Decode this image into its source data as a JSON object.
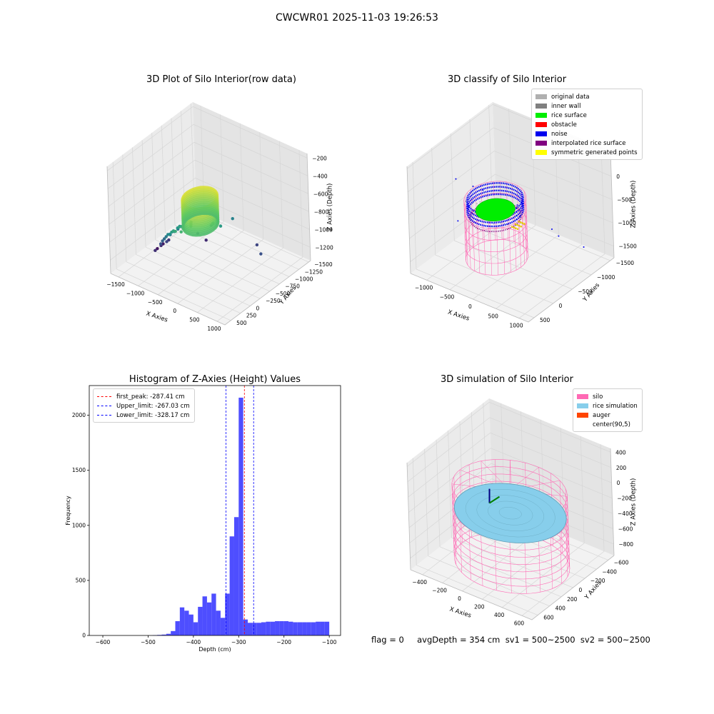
{
  "suptitle": "CWCWR01 2025-11-03 19:26:53",
  "footer": "flag = 0     avgDepth = 354 cm  sv1 = 500~2500  sv2 = 500~2500",
  "colors": {
    "grid": "#d6d6d6",
    "pane": "#f2f2f2",
    "hist_bar": "#4444ff",
    "peak_line": "#ff0000",
    "limit_line": "#0000ff",
    "silo": "#ff69b4",
    "rice": "#87ceeb",
    "auger": "#ff4500"
  },
  "chart_data": [
    {
      "id": "raw",
      "type": "scatter",
      "title": "3D Plot of Silo Interior(row data)",
      "xlabel": "X Axies",
      "ylabel": "Y Axies",
      "zlabel": "Z Axies (Depth)",
      "xlim": [
        -1700,
        1200
      ],
      "ylim": [
        -1550,
        650
      ],
      "zlim": [
        -1350,
        -150
      ],
      "xticks": [
        -1500,
        -1000,
        -500,
        0,
        500,
        1000
      ],
      "yticks": [
        500,
        250,
        0,
        -250,
        -500,
        -750,
        -1000,
        -1250,
        -1500
      ],
      "zticks": [
        -200,
        -400,
        -600,
        -800,
        -1000,
        -1200
      ],
      "colormap": "viridis",
      "ring": {
        "cx": 300,
        "cy": 300,
        "r": 320,
        "z_top": -220,
        "z_bottom": -520
      },
      "scatter_points": [
        {
          "x": -1350,
          "y": -200,
          "z": -1280
        },
        {
          "x": -1300,
          "y": -300,
          "z": -1250
        },
        {
          "x": -1200,
          "y": -150,
          "z": -1200
        },
        {
          "x": -1100,
          "y": -250,
          "z": -1150
        },
        {
          "x": -1150,
          "y": 50,
          "z": -1180
        },
        {
          "x": -1000,
          "y": -100,
          "z": -1100
        },
        {
          "x": -950,
          "y": 100,
          "z": -1050
        },
        {
          "x": -900,
          "y": -200,
          "z": -1000
        },
        {
          "x": -850,
          "y": 150,
          "z": -980
        },
        {
          "x": -800,
          "y": 0,
          "z": -950
        },
        {
          "x": -750,
          "y": 200,
          "z": -920
        },
        {
          "x": -700,
          "y": -100,
          "z": -900
        },
        {
          "x": -650,
          "y": 250,
          "z": -860
        },
        {
          "x": -600,
          "y": 100,
          "z": -840
        },
        {
          "x": -550,
          "y": 300,
          "z": -800
        },
        {
          "x": -500,
          "y": 50,
          "z": -780
        },
        {
          "x": -450,
          "y": 350,
          "z": -760
        },
        {
          "x": -400,
          "y": 200,
          "z": -730
        },
        {
          "x": -350,
          "y": 400,
          "z": -700
        },
        {
          "x": -300,
          "y": 250,
          "z": -680
        },
        {
          "x": -250,
          "y": 450,
          "z": -650
        },
        {
          "x": -200,
          "y": 300,
          "z": -640
        },
        {
          "x": -150,
          "y": 500,
          "z": -620
        },
        {
          "x": -100,
          "y": 150,
          "z": -620
        },
        {
          "x": -50,
          "y": 400,
          "z": -600
        },
        {
          "x": 0,
          "y": 250,
          "z": -590
        },
        {
          "x": 50,
          "y": 550,
          "z": -570
        },
        {
          "x": 100,
          "y": 350,
          "z": -560
        },
        {
          "x": -450,
          "y": -350,
          "z": -980
        },
        {
          "x": -250,
          "y": -500,
          "z": -900
        },
        {
          "x": 100,
          "y": -700,
          "z": -820
        },
        {
          "x": 500,
          "y": -900,
          "z": -1100
        },
        {
          "x": 850,
          "y": -650,
          "z": -1050
        },
        {
          "x": -600,
          "y": -700,
          "z": -1200
        },
        {
          "x": 0,
          "y": -300,
          "z": -760
        },
        {
          "x": 300,
          "y": -200,
          "z": -700
        }
      ]
    },
    {
      "id": "classify",
      "type": "scatter",
      "title": "3D classify of Silo Interior",
      "xlabel": "X Axies",
      "ylabel": "Y Axies",
      "zlabel": "Z Axies (Depth)",
      "xlim": [
        -1350,
        1200
      ],
      "ylim": [
        -1600,
        650
      ],
      "zlim": [
        -1750,
        550
      ],
      "xticks": [
        -1000,
        -500,
        0,
        500,
        1000
      ],
      "yticks": [
        500,
        0,
        -500,
        -1000,
        -1500
      ],
      "zticks": [
        500,
        0,
        -500,
        -1000,
        -1500
      ],
      "legend": [
        {
          "label": "original data",
          "color": "#b0b0b0"
        },
        {
          "label": "inner wall",
          "color": "#808080"
        },
        {
          "label": "rice surface",
          "color": "#00ee00"
        },
        {
          "label": "obstacle",
          "color": "#ff0000"
        },
        {
          "label": "noise",
          "color": "#0000ee"
        },
        {
          "label": "interpolated rice surface",
          "color": "#800080"
        },
        {
          "label": "symmetric generated points",
          "color": "#ffff00"
        }
      ]
    },
    {
      "id": "hist",
      "type": "bar",
      "title": "Histogram of Z-Axies (Height) Values",
      "xlabel": "Depth (cm)",
      "ylabel": "Frequency",
      "xlim": [
        -630,
        -75
      ],
      "ylim": [
        0,
        2270
      ],
      "xticks": [
        -600,
        -500,
        -400,
        -300,
        -200,
        -100
      ],
      "yticks": [
        0,
        500,
        1000,
        1500,
        2000
      ],
      "bin_start": -490,
      "bin_width": 10,
      "values": [
        3,
        5,
        8,
        15,
        40,
        130,
        255,
        225,
        190,
        120,
        260,
        355,
        300,
        380,
        225,
        160,
        380,
        900,
        1075,
        2160,
        145,
        115,
        115,
        115,
        120,
        125,
        125,
        130,
        130,
        130,
        125,
        120,
        120,
        120,
        120,
        120,
        125,
        125,
        125
      ],
      "vlines": [
        {
          "label": "first_peak: -287.41 cm",
          "x": -287.41,
          "color": "#ff0000"
        },
        {
          "label": "Upper_limit: -267.03 cm",
          "x": -267.03,
          "color": "#0000ff"
        },
        {
          "label": "Lower_limit: -328.17 cm",
          "x": -328.17,
          "color": "#0000ff"
        }
      ]
    },
    {
      "id": "sim",
      "type": "area",
      "title": "3D simulation of Silo Interior",
      "xlabel": "X Axies",
      "ylabel": "Y Axies",
      "zlabel": "Z Axies (Depth)",
      "xlim": [
        -520,
        700
      ],
      "ylim": [
        -700,
        700
      ],
      "zlim": [
        -950,
        450
      ],
      "xticks": [
        -400,
        -200,
        0,
        200,
        400,
        600
      ],
      "yticks": [
        600,
        400,
        200,
        0,
        -200,
        -400,
        -600
      ],
      "zticks": [
        400,
        200,
        0,
        -200,
        -400,
        -600,
        -800
      ],
      "silo": {
        "r": 500,
        "z_top": 0,
        "z_bottom": -950
      },
      "rice_surface_z": -300,
      "legend": [
        {
          "label": "silo",
          "color": "#ff69b4"
        },
        {
          "label": "rice simulation",
          "color": "#87ceeb"
        },
        {
          "label": "auger",
          "color": "#ff4500"
        },
        {
          "label": "center(90,5)",
          "color": ""
        }
      ]
    }
  ]
}
